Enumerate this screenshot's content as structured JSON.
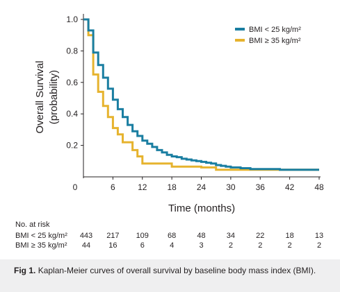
{
  "chart_data": {
    "type": "line",
    "step": true,
    "xlabel": "Time (months)",
    "ylabel": "Overall Survival (probability)",
    "ylabel_lines": [
      "Overall Survival",
      "(probability)"
    ],
    "xlim": [
      0,
      48
    ],
    "ylim": [
      0,
      1.0
    ],
    "x_ticks": [
      0,
      6,
      12,
      18,
      24,
      30,
      36,
      42,
      48
    ],
    "y_ticks": [
      0.2,
      0.4,
      0.6,
      0.8,
      1.0
    ],
    "y_tick_labels": [
      "0.2",
      "0.4",
      "0.6",
      "0.8",
      "1.0"
    ],
    "grid": false,
    "legend_position": "top-right",
    "series": [
      {
        "name": "BMI < 25 kg/m²",
        "color": "#1a7ea1",
        "points": [
          [
            0,
            1.0
          ],
          [
            1,
            0.93
          ],
          [
            2,
            0.79
          ],
          [
            3,
            0.71
          ],
          [
            4,
            0.63
          ],
          [
            5,
            0.56
          ],
          [
            6,
            0.49
          ],
          [
            7,
            0.43
          ],
          [
            8,
            0.38
          ],
          [
            9,
            0.33
          ],
          [
            10,
            0.29
          ],
          [
            11,
            0.26
          ],
          [
            12,
            0.23
          ],
          [
            13,
            0.21
          ],
          [
            14,
            0.19
          ],
          [
            15,
            0.17
          ],
          [
            16,
            0.155
          ],
          [
            17,
            0.14
          ],
          [
            18,
            0.13
          ],
          [
            19,
            0.125
          ],
          [
            20,
            0.115
          ],
          [
            21,
            0.11
          ],
          [
            22,
            0.105
          ],
          [
            23,
            0.1
          ],
          [
            24,
            0.095
          ],
          [
            25,
            0.09
          ],
          [
            26,
            0.085
          ],
          [
            27,
            0.075
          ],
          [
            28,
            0.07
          ],
          [
            29,
            0.065
          ],
          [
            30,
            0.06
          ],
          [
            31,
            0.06
          ],
          [
            32,
            0.055
          ],
          [
            33,
            0.055
          ],
          [
            34,
            0.05
          ],
          [
            36,
            0.05
          ],
          [
            40,
            0.045
          ],
          [
            48,
            0.045
          ]
        ]
      },
      {
        "name": "BMI ≥ 35 kg/m²",
        "color": "#e6b32e",
        "points": [
          [
            0,
            1.0
          ],
          [
            1,
            0.9
          ],
          [
            2,
            0.65
          ],
          [
            3,
            0.54
          ],
          [
            4,
            0.45
          ],
          [
            5,
            0.38
          ],
          [
            6,
            0.31
          ],
          [
            7,
            0.27
          ],
          [
            8,
            0.22
          ],
          [
            10,
            0.17
          ],
          [
            11,
            0.13
          ],
          [
            12,
            0.085
          ],
          [
            18,
            0.065
          ],
          [
            24,
            0.06
          ],
          [
            27,
            0.045
          ],
          [
            48,
            0.045
          ]
        ]
      }
    ],
    "risk_table": {
      "header": "No. at risk",
      "times": [
        0,
        6,
        12,
        18,
        24,
        30,
        36,
        42,
        48
      ],
      "rows": [
        {
          "label": "BMI < 25 kg/m²",
          "values": [
            "443",
            "217",
            "109",
            "68",
            "48",
            "34",
            "22",
            "18",
            "13"
          ]
        },
        {
          "label": "BMI ≥ 35 kg/m²",
          "values": [
            "44",
            "16",
            "6",
            "4",
            "3",
            "2",
            "2",
            "2",
            "2"
          ]
        }
      ]
    }
  },
  "caption": {
    "label": "Fig 1.",
    "text": "Kaplan-Meier curves of overall survival by baseline body mass index (BMI)."
  }
}
